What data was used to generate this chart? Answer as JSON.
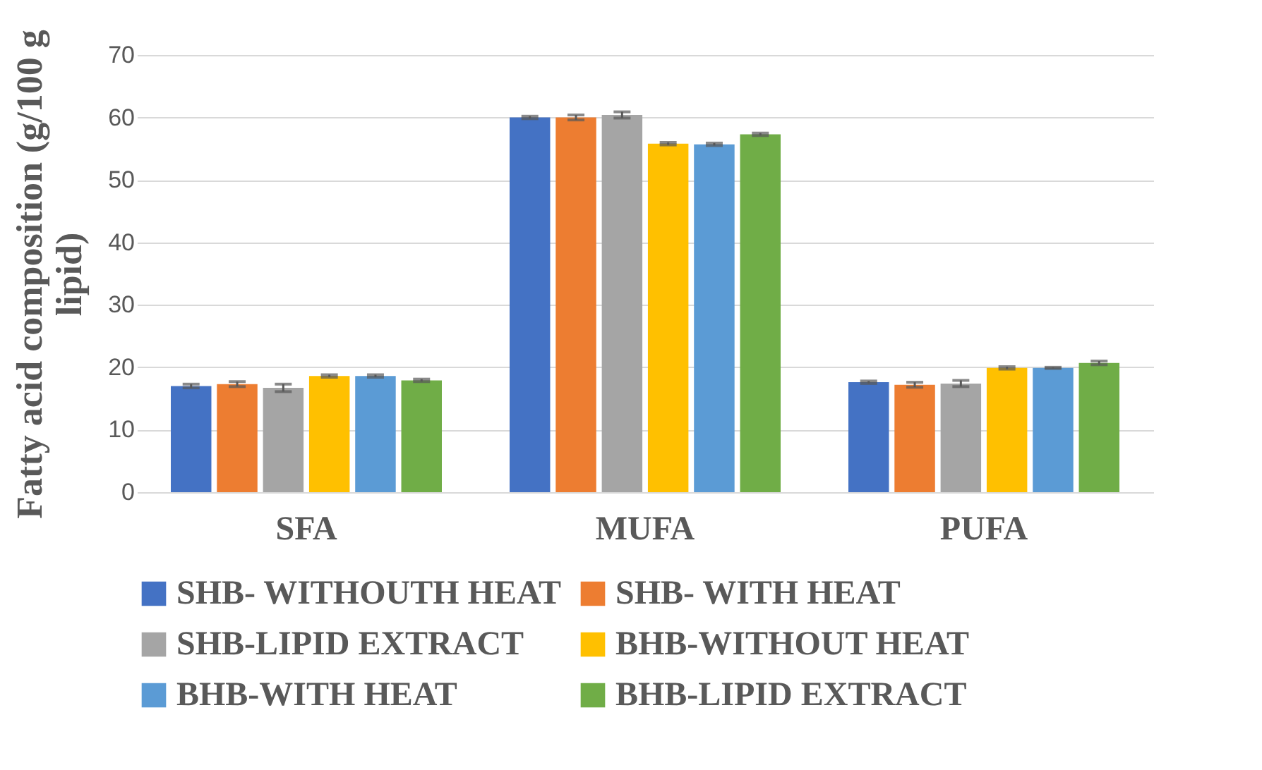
{
  "chart_data": {
    "type": "bar",
    "ylabel": "Fatty acid composition (g/100 g lipid)",
    "categories": [
      "SFA",
      "MUFA",
      "PUFA"
    ],
    "series": [
      {
        "name": "SHB- WITHOUTH HEAT",
        "color": "#4472c4",
        "values": [
          17.0,
          60.0,
          17.6
        ],
        "errors": [
          0.3,
          0.2,
          0.2
        ]
      },
      {
        "name": "SHB- WITH HEAT",
        "color": "#ed7d31",
        "values": [
          17.3,
          60.0,
          17.2
        ],
        "errors": [
          0.4,
          0.4,
          0.4
        ]
      },
      {
        "name": "SHB-LIPID EXTRACT",
        "color": "#a5a5a5",
        "values": [
          16.7,
          60.4,
          17.4
        ],
        "errors": [
          0.6,
          0.5,
          0.5
        ]
      },
      {
        "name": "BHB-WITHOUT HEAT",
        "color": "#ffc000",
        "values": [
          18.6,
          55.8,
          19.9
        ],
        "errors": [
          0.2,
          0.2,
          0.2
        ]
      },
      {
        "name": "BHB-WITH HEAT",
        "color": "#5b9bd5",
        "values": [
          18.6,
          55.7,
          19.9
        ],
        "errors": [
          0.2,
          0.2,
          0.1
        ]
      },
      {
        "name": "BHB-LIPID EXTRACT",
        "color": "#70ad47",
        "values": [
          17.9,
          57.3,
          20.7
        ],
        "errors": [
          0.2,
          0.2,
          0.3
        ]
      }
    ],
    "ylim": [
      0,
      70
    ],
    "yticks": [
      0,
      10,
      20,
      30,
      40,
      50,
      60,
      70
    ],
    "grid": "y",
    "legend": "bottom"
  }
}
